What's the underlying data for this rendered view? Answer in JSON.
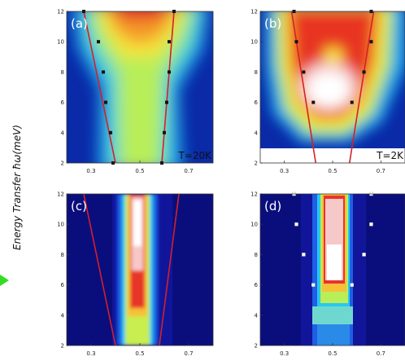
{
  "ylabel": "Energy Transfer ħω(meV)",
  "chart_data": [
    {
      "type": "heatmap",
      "panel_label": "(a)",
      "annotation": "T=20K",
      "xlim": [
        0.2,
        0.8
      ],
      "ylim": [
        2,
        12
      ],
      "x_ticks": [
        "0.3",
        "0.5",
        "0.7"
      ],
      "y_ticks": [
        "2",
        "4",
        "6",
        "8",
        "10",
        "12"
      ],
      "markers": {
        "color": "black",
        "points": [
          [
            0.27,
            12
          ],
          [
            0.33,
            10
          ],
          [
            0.35,
            8
          ],
          [
            0.36,
            6
          ],
          [
            0.38,
            4
          ],
          [
            0.39,
            2
          ],
          [
            0.64,
            12
          ],
          [
            0.62,
            10
          ],
          [
            0.62,
            8
          ],
          [
            0.61,
            6
          ],
          [
            0.6,
            4
          ],
          [
            0.59,
            2
          ]
        ]
      },
      "fit_lines": [
        [
          [
            0.27,
            12
          ],
          [
            0.4,
            2
          ]
        ],
        [
          [
            0.64,
            12
          ],
          [
            0.59,
            2
          ]
        ]
      ]
    },
    {
      "type": "heatmap",
      "panel_label": "(b)",
      "annotation": "T=2K",
      "xlim": [
        0.2,
        0.8
      ],
      "ylim": [
        2,
        12
      ],
      "x_ticks": [
        "0.3",
        "0.5",
        "0.7"
      ],
      "y_ticks": [
        "2",
        "4",
        "6",
        "8",
        "10",
        "12"
      ],
      "markers": {
        "color": "black",
        "points": [
          [
            0.34,
            12
          ],
          [
            0.35,
            10
          ],
          [
            0.38,
            8
          ],
          [
            0.42,
            6
          ],
          [
            0.58,
            6
          ],
          [
            0.63,
            8
          ],
          [
            0.66,
            10
          ],
          [
            0.66,
            12
          ]
        ]
      },
      "fit_lines": [
        [
          [
            0.33,
            12
          ],
          [
            0.43,
            2
          ]
        ],
        [
          [
            0.67,
            12
          ],
          [
            0.57,
            2
          ]
        ]
      ]
    },
    {
      "type": "heatmap",
      "panel_label": "(c)",
      "annotation": "",
      "xlim": [
        0.2,
        0.8
      ],
      "ylim": [
        2,
        12
      ],
      "x_ticks": [
        "0.3",
        "0.5",
        "0.7"
      ],
      "y_ticks": [
        "2",
        "4",
        "6",
        "8",
        "10",
        "12"
      ],
      "markers": {
        "color": "none",
        "points": []
      },
      "fit_lines": [
        [
          [
            0.27,
            12
          ],
          [
            0.4,
            2
          ]
        ],
        [
          [
            0.66,
            12
          ],
          [
            0.58,
            2
          ]
        ]
      ]
    },
    {
      "type": "heatmap",
      "panel_label": "(d)",
      "annotation": "",
      "xlim": [
        0.2,
        0.8
      ],
      "ylim": [
        2,
        12
      ],
      "x_ticks": [
        "0.3",
        "0.5",
        "0.7"
      ],
      "y_ticks": [
        "2",
        "4",
        "6",
        "8",
        "10",
        "12"
      ],
      "markers": {
        "color": "white",
        "points": [
          [
            0.34,
            12
          ],
          [
            0.35,
            10
          ],
          [
            0.38,
            8
          ],
          [
            0.42,
            6
          ],
          [
            0.58,
            6
          ],
          [
            0.63,
            8
          ],
          [
            0.66,
            10
          ],
          [
            0.66,
            12
          ]
        ]
      },
      "fit_lines": []
    }
  ]
}
